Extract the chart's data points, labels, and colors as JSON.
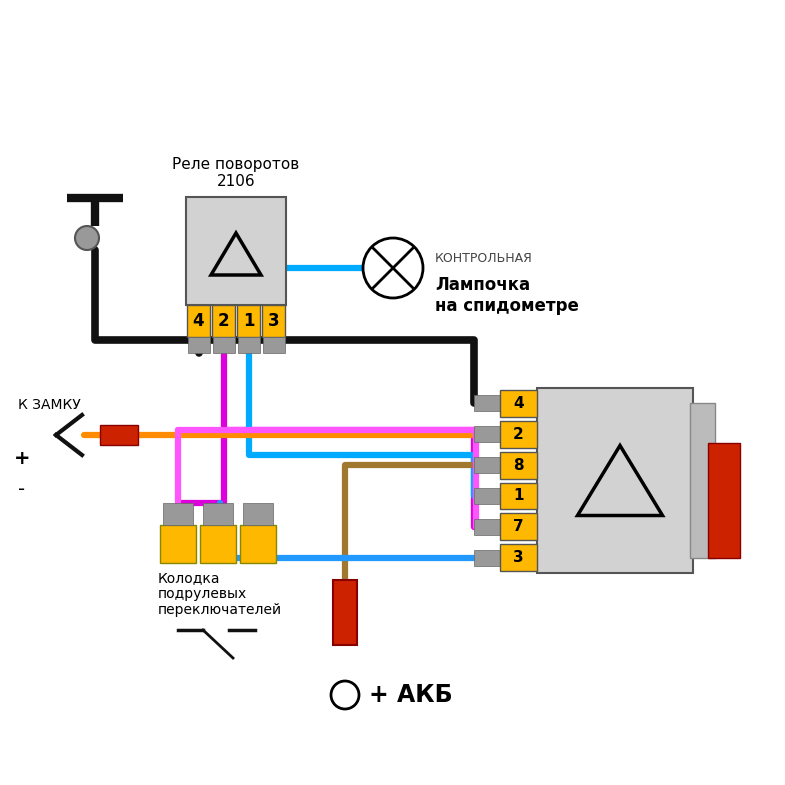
{
  "bg_color": "#ffffff",
  "relay_top_label": "Реле поворотов\n2106",
  "relay_top_pins": [
    "4",
    "2",
    "1",
    "3"
  ],
  "relay_right_pins": [
    "4",
    "2",
    "8",
    "1",
    "7",
    "3"
  ],
  "bulb_label_top": "КОНТРОЛЬНАЯ",
  "bulb_label_bot": "Лампочка\nна спидометре",
  "kolodka_label": "Колодка\nподрулевых\nпереключателей",
  "k_zamku_label": "К ЗАМКУ",
  "akb_label": "+ АКБ",
  "plus_label": "+",
  "minus_label": "-",
  "wire_black": "#111111",
  "wire_magenta": "#DD00DD",
  "wire_mag2": "#FF55FF",
  "wire_blue": "#00AAFF",
  "wire_blue2": "#2299FF",
  "wire_orange": "#FF8C00",
  "wire_tan": "#A07830",
  "pin_color": "#FFB800",
  "body_color": "#D2D2D2",
  "body_edge": "#555555",
  "gray_conn": "#999999",
  "gray_edge": "#666666",
  "red_color": "#CC2200",
  "red_edge": "#880000"
}
